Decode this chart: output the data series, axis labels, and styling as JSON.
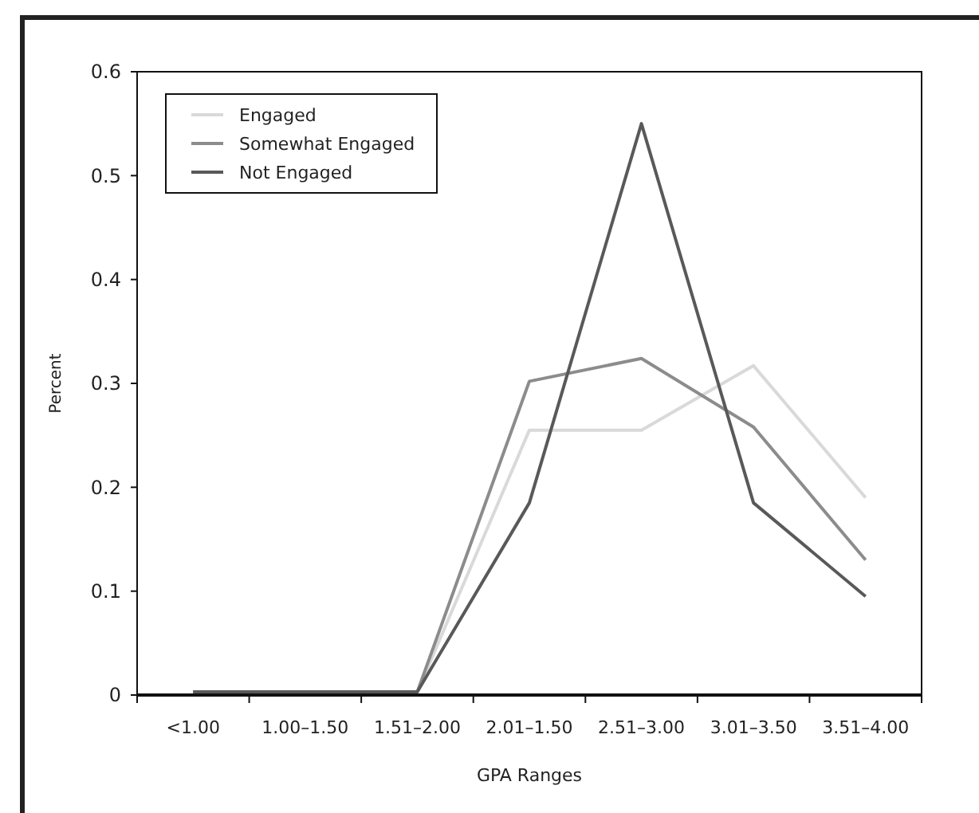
{
  "chart_data": {
    "type": "line",
    "xlabel": "GPA Ranges",
    "ylabel": "Percent",
    "categories": [
      "<1.00",
      "1.00–1.50",
      "1.51–2.00",
      "2.01–1.50",
      "2.51–3.00",
      "3.01–3.50",
      "3.51–4.00"
    ],
    "series": [
      {
        "name": "Engaged",
        "color": "#d9d9d9",
        "values": [
          0.003,
          0.003,
          0.003,
          0.255,
          0.255,
          0.317,
          0.19
        ]
      },
      {
        "name": "Somewhat Engaged",
        "color": "#8c8c8c",
        "values": [
          0.003,
          0.003,
          0.003,
          0.302,
          0.324,
          0.258,
          0.13
        ]
      },
      {
        "name": "Not Engaged",
        "color": "#595959",
        "values": [
          0.003,
          0.003,
          0.003,
          0.185,
          0.55,
          0.185,
          0.095
        ]
      }
    ],
    "ylim": [
      0,
      0.6
    ],
    "yticks": [
      0,
      0.1,
      0.2,
      0.3,
      0.4,
      0.5,
      0.6
    ],
    "grid": false,
    "legend": "top left",
    "marker": "none",
    "line_style": "solid"
  }
}
